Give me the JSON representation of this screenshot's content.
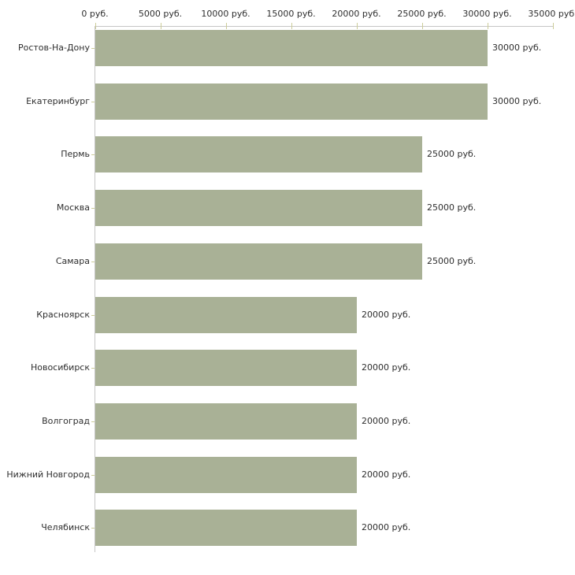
{
  "chart_data": {
    "type": "bar",
    "orientation": "horizontal",
    "title": "",
    "xlabel": "",
    "ylabel": "",
    "grid": false,
    "legend": null,
    "categories": [
      "Ростов-На-Дону",
      "Екатеринбург",
      "Пермь",
      "Москва",
      "Самара",
      "Красноярск",
      "Новосибирск",
      "Волгоград",
      "Нижний Новгород",
      "Челябинск"
    ],
    "values": [
      30000,
      30000,
      25000,
      25000,
      25000,
      20000,
      20000,
      20000,
      20000,
      20000
    ],
    "value_labels": [
      "30000 руб.",
      "30000 руб.",
      "25000 руб.",
      "25000 руб.",
      "25000 руб.",
      "20000 руб.",
      "20000 руб.",
      "20000 руб.",
      "20000 руб.",
      "20000 руб."
    ],
    "x_ticks": [
      0,
      5000,
      10000,
      15000,
      20000,
      25000,
      30000,
      35000
    ],
    "x_tick_labels": [
      "0 руб.",
      "5000 руб.",
      "10000 руб.",
      "15000 руб.",
      "20000 руб.",
      "25000 руб.",
      "30000 руб.",
      "35000 руб."
    ],
    "xlim": [
      0,
      35000
    ],
    "colors": {
      "bar": "#a9b196",
      "tick": "#cccc99",
      "axis": "#c6c6c6",
      "text": "#2e2e2e",
      "background": "#ffffff"
    }
  }
}
